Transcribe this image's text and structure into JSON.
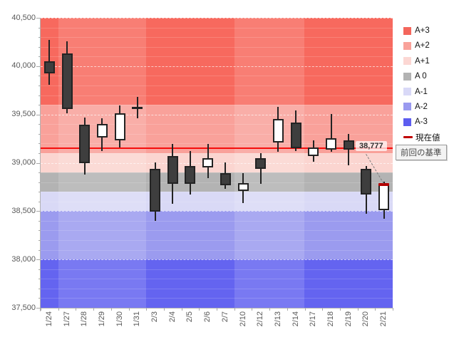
{
  "chart_data": {
    "type": "candlestick",
    "y_axis": {
      "min": 37500,
      "max": 40500,
      "major_step": 500,
      "minor_step": 100,
      "tick_labels": [
        "40,500",
        "40,000",
        "39,500",
        "39,000",
        "38,500",
        "38,000",
        "37,500"
      ]
    },
    "x_tick_labels": [
      "1/24",
      "1/27",
      "1/28",
      "1/29",
      "1/30",
      "1/31",
      "2/3",
      "2/4",
      "2/5",
      "2/6",
      "2/7",
      "2/10",
      "2/12",
      "2/13",
      "2/14",
      "2/17",
      "2/18",
      "2/19",
      "2/20",
      "2/21"
    ],
    "bands": [
      {
        "label": "A+3",
        "from": 39600,
        "to": 40500,
        "color": "#f7695e"
      },
      {
        "label": "A+2",
        "from": 39100,
        "to": 39600,
        "color": "#f9a19a"
      },
      {
        "label": "A+1",
        "from": 38900,
        "to": 39100,
        "color": "#fbd5d0"
      },
      {
        "label": "A 0",
        "from": 38700,
        "to": 38900,
        "color": "#b3b3b3"
      },
      {
        "label": "A-1",
        "from": 38500,
        "to": 38700,
        "color": "#d9d9f6"
      },
      {
        "label": "A-2",
        "from": 38000,
        "to": 38500,
        "color": "#9b9bef"
      },
      {
        "label": "A-3",
        "from": 37500,
        "to": 38000,
        "color": "#6464f0"
      }
    ],
    "week_groups": [
      {
        "count": 1,
        "shade": "dark"
      },
      {
        "count": 5,
        "shade": "light"
      },
      {
        "count": 5,
        "shade": "dark"
      },
      {
        "count": 4,
        "shade": "light"
      },
      {
        "count": 5,
        "shade": "dark"
      }
    ],
    "baseline": {
      "label": "前回の基準",
      "value": 39150,
      "color": "#f40000"
    },
    "current_value": {
      "label": "現在値",
      "value": 38777,
      "display": "38,777",
      "color": "#b30000"
    },
    "candles": [
      {
        "date": "1/24",
        "open": 40050,
        "high": 40270,
        "low": 39805,
        "close": 39925
      },
      {
        "date": "1/27",
        "open": 40130,
        "high": 40255,
        "low": 39510,
        "close": 39555
      },
      {
        "date": "1/28",
        "open": 39395,
        "high": 39470,
        "low": 38880,
        "close": 38995
      },
      {
        "date": "1/29",
        "open": 39260,
        "high": 39460,
        "low": 39120,
        "close": 39400
      },
      {
        "date": "1/30",
        "open": 39230,
        "high": 39590,
        "low": 39160,
        "close": 39510
      },
      {
        "date": "1/31",
        "open": 39570,
        "high": 39680,
        "low": 39460,
        "close": 39570
      },
      {
        "date": "2/3",
        "open": 38940,
        "high": 39005,
        "low": 38400,
        "close": 38495
      },
      {
        "date": "2/4",
        "open": 39070,
        "high": 39195,
        "low": 38575,
        "close": 38780
      },
      {
        "date": "2/5",
        "open": 38965,
        "high": 39120,
        "low": 38670,
        "close": 38780
      },
      {
        "date": "2/6",
        "open": 38950,
        "high": 39195,
        "low": 38840,
        "close": 39050
      },
      {
        "date": "2/7",
        "open": 38895,
        "high": 39005,
        "low": 38730,
        "close": 38770
      },
      {
        "date": "2/10",
        "open": 38710,
        "high": 38890,
        "low": 38580,
        "close": 38790
      },
      {
        "date": "2/12",
        "open": 39050,
        "high": 39100,
        "low": 38780,
        "close": 38940
      },
      {
        "date": "2/13",
        "open": 39210,
        "high": 39580,
        "low": 39115,
        "close": 39455
      },
      {
        "date": "2/14",
        "open": 39415,
        "high": 39540,
        "low": 39125,
        "close": 39150
      },
      {
        "date": "2/17",
        "open": 39070,
        "high": 39230,
        "low": 39010,
        "close": 39160
      },
      {
        "date": "2/18",
        "open": 39135,
        "high": 39505,
        "low": 39115,
        "close": 39255
      },
      {
        "date": "2/19",
        "open": 39230,
        "high": 39300,
        "low": 38975,
        "close": 39135
      },
      {
        "date": "2/20",
        "open": 38935,
        "high": 38965,
        "low": 38470,
        "close": 38670
      },
      {
        "date": "2/21",
        "open": 38510,
        "high": 38805,
        "low": 38425,
        "close": 38777
      }
    ],
    "legend": {
      "items": [
        {
          "label": "A+3",
          "color": "#f4665c",
          "marker": "square"
        },
        {
          "label": "A+2",
          "color": "#f9a29a",
          "marker": "square"
        },
        {
          "label": "A+1",
          "color": "#fcd7d3",
          "marker": "square"
        },
        {
          "label": "A 0",
          "color": "#b3b3b3",
          "marker": "square"
        },
        {
          "label": "A-1",
          "color": "#d9d9f7",
          "marker": "square"
        },
        {
          "label": "A-2",
          "color": "#9a9af0",
          "marker": "square"
        },
        {
          "label": "A-3",
          "color": "#5d5df0",
          "marker": "square"
        },
        {
          "label": "現在値",
          "color": "#c00000",
          "marker": "dash"
        }
      ],
      "tooltip_label": "前回の基準"
    }
  }
}
